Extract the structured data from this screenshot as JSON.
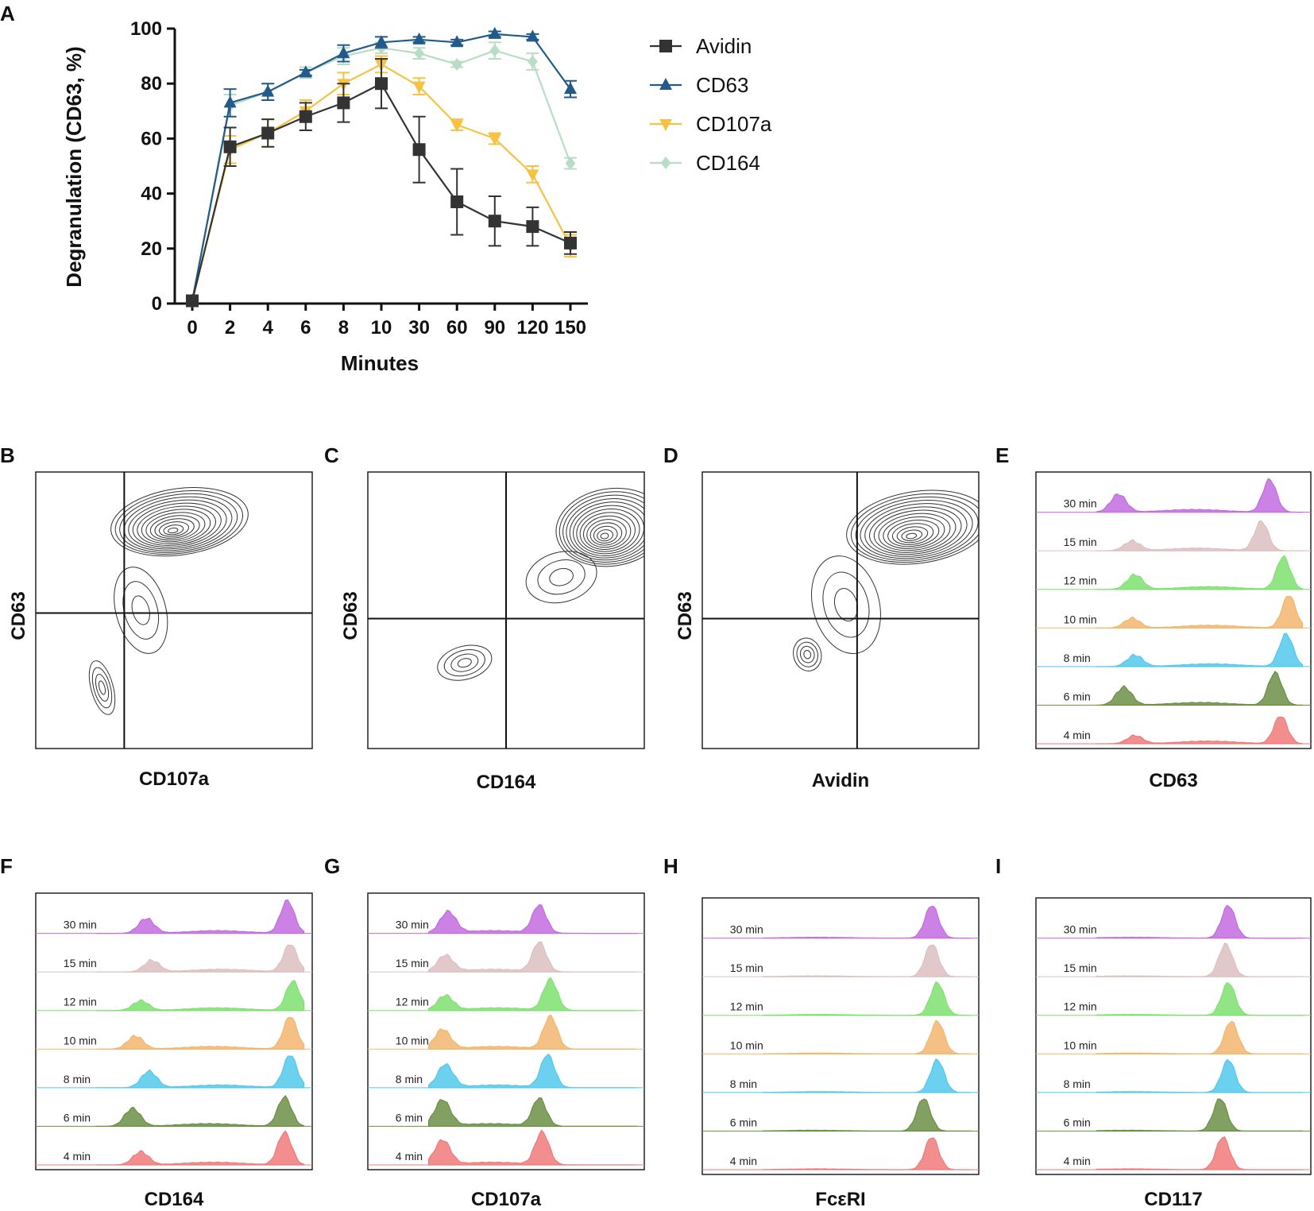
{
  "panel_labels": [
    "A",
    "B",
    "C",
    "D",
    "E",
    "F",
    "G",
    "H",
    "I"
  ],
  "chart_data": [
    {
      "id": "A",
      "type": "line",
      "title": "",
      "xlabel": "Minutes",
      "ylabel": "Degranulation (CD63, %)",
      "categories": [
        "0",
        "2",
        "4",
        "6",
        "8",
        "10",
        "30",
        "60",
        "90",
        "120",
        "150"
      ],
      "ylim": [
        0,
        100
      ],
      "yticks": [
        0,
        20,
        40,
        60,
        80,
        100
      ],
      "legend_position": "right",
      "series": [
        {
          "name": "Avidin",
          "color": "#333333",
          "marker": "square",
          "values": [
            1,
            57,
            62,
            68,
            73,
            80,
            56,
            37,
            30,
            28,
            22
          ],
          "errors": [
            0,
            7,
            5,
            5,
            7,
            9,
            12,
            12,
            9,
            7,
            4
          ]
        },
        {
          "name": "CD63",
          "color": "#235a8c",
          "marker": "triangle-up",
          "values": [
            1,
            73,
            77,
            84,
            91,
            95,
            96,
            95,
            98,
            97,
            78
          ],
          "errors": [
            0,
            5,
            3,
            1,
            3,
            2,
            1,
            1,
            1,
            1,
            3
          ]
        },
        {
          "name": "CD107a",
          "color": "#f5c242",
          "marker": "triangle-down",
          "values": [
            1,
            56,
            62,
            70,
            80,
            87,
            79,
            65,
            60,
            47,
            21
          ],
          "errors": [
            0,
            5,
            5,
            4,
            4,
            3,
            3,
            2,
            2,
            3,
            4
          ]
        },
        {
          "name": "CD164",
          "color": "#b8ddc4",
          "marker": "diamond",
          "values": [
            1,
            72,
            77,
            84,
            90,
            93,
            91,
            87,
            92,
            88,
            51
          ],
          "errors": [
            0,
            4,
            3,
            2,
            3,
            2,
            2,
            1,
            3,
            3,
            2
          ]
        }
      ]
    },
    {
      "id": "B",
      "type": "contour",
      "xlabel": "CD107a",
      "ylabel": "CD63",
      "populations": [
        {
          "x": 0.24,
          "y": 0.22,
          "sx": 0.04,
          "sy": 0.1,
          "levels": 4
        },
        {
          "x": 0.52,
          "y": 0.82,
          "sx": 0.25,
          "sy": 0.12,
          "levels": 14
        },
        {
          "x": 0.38,
          "y": 0.5,
          "sx": 0.09,
          "sy": 0.16,
          "levels": 3
        }
      ],
      "gate": {
        "x": 0.32,
        "y": 0.49
      }
    },
    {
      "id": "C",
      "type": "contour",
      "xlabel": "CD164",
      "ylabel": "CD63",
      "populations": [
        {
          "x": 0.35,
          "y": 0.31,
          "sx": 0.1,
          "sy": 0.06,
          "levels": 4
        },
        {
          "x": 0.88,
          "y": 0.8,
          "sx": 0.2,
          "sy": 0.14,
          "levels": 14
        },
        {
          "x": 0.7,
          "y": 0.62,
          "sx": 0.13,
          "sy": 0.09,
          "levels": 3
        }
      ],
      "gate": {
        "x": 0.5,
        "y": 0.47
      }
    },
    {
      "id": "D",
      "type": "contour",
      "xlabel": "Avidin",
      "ylabel": "CD63",
      "populations": [
        {
          "x": 0.38,
          "y": 0.34,
          "sx": 0.05,
          "sy": 0.06,
          "levels": 4
        },
        {
          "x": 0.78,
          "y": 0.8,
          "sx": 0.26,
          "sy": 0.13,
          "levels": 14
        },
        {
          "x": 0.52,
          "y": 0.52,
          "sx": 0.12,
          "sy": 0.18,
          "levels": 3
        }
      ],
      "gate": {
        "x": 0.56,
        "y": 0.47
      }
    },
    {
      "id": "E",
      "type": "histogram_overlay",
      "xlabel": "CD63",
      "rows": [
        "30 min",
        "15 min",
        "12 min",
        "10 min",
        "8 min",
        "6 min",
        "4 min"
      ],
      "colors": [
        "#c36be0",
        "#dcc0c0",
        "#7fe070",
        "#f3b56e",
        "#52c8ec",
        "#6b8f45",
        "#f07a7a"
      ],
      "peaks": [
        [
          0.3,
          0.55,
          0.85,
          1.0
        ],
        [
          0.35,
          0.3,
          0.82,
          0.9
        ],
        [
          0.36,
          0.45,
          0.9,
          1.0
        ],
        [
          0.35,
          0.3,
          0.92,
          1.0
        ],
        [
          0.36,
          0.35,
          0.91,
          1.0
        ],
        [
          0.32,
          0.55,
          0.87,
          1.0
        ],
        [
          0.36,
          0.25,
          0.89,
          0.85
        ]
      ]
    },
    {
      "id": "F",
      "type": "histogram_overlay",
      "xlabel": "CD164",
      "rows": [
        "30 min",
        "15 min",
        "12 min",
        "10 min",
        "8 min",
        "6 min",
        "4 min"
      ],
      "colors": [
        "#c36be0",
        "#dcc0c0",
        "#7fe070",
        "#f3b56e",
        "#52c8ec",
        "#6b8f45",
        "#f07a7a"
      ],
      "peaks": [
        [
          0.4,
          0.45,
          0.91,
          1.0
        ],
        [
          0.42,
          0.35,
          0.92,
          0.85
        ],
        [
          0.38,
          0.3,
          0.93,
          0.9
        ],
        [
          0.36,
          0.4,
          0.92,
          1.0
        ],
        [
          0.41,
          0.5,
          0.92,
          1.0
        ],
        [
          0.35,
          0.55,
          0.9,
          0.9
        ],
        [
          0.38,
          0.4,
          0.9,
          1.0
        ]
      ]
    },
    {
      "id": "G",
      "type": "histogram_overlay",
      "xlabel": "CD107a",
      "rows": [
        "30 min",
        "15 min",
        "12 min",
        "10 min",
        "8 min",
        "6 min",
        "4 min"
      ],
      "colors": [
        "#c36be0",
        "#dcc0c0",
        "#7fe070",
        "#f3b56e",
        "#52c8ec",
        "#6b8f45",
        "#f07a7a"
      ],
      "peaks": [
        [
          0.29,
          0.65,
          0.62,
          0.85
        ],
        [
          0.28,
          0.5,
          0.62,
          0.9
        ],
        [
          0.28,
          0.45,
          0.66,
          0.95
        ],
        [
          0.27,
          0.6,
          0.66,
          1.0
        ],
        [
          0.28,
          0.7,
          0.65,
          1.0
        ],
        [
          0.27,
          0.8,
          0.62,
          0.85
        ],
        [
          0.27,
          0.75,
          0.63,
          1.0
        ]
      ]
    },
    {
      "id": "H",
      "type": "histogram_overlay",
      "xlabel": "FcεRI",
      "rows": [
        "30 min",
        "15 min",
        "12 min",
        "10 min",
        "8 min",
        "6 min",
        "4 min"
      ],
      "colors": [
        "#c36be0",
        "#dcc0c0",
        "#7fe070",
        "#f3b56e",
        "#52c8ec",
        "#6b8f45",
        "#f07a7a"
      ],
      "peaks": [
        [
          0.0,
          0.0,
          0.83,
          1.0
        ],
        [
          0.0,
          0.0,
          0.83,
          1.0
        ],
        [
          0.0,
          0.0,
          0.85,
          1.0
        ],
        [
          0.0,
          0.0,
          0.85,
          1.0
        ],
        [
          0.0,
          0.0,
          0.85,
          1.0
        ],
        [
          0.0,
          0.0,
          0.8,
          1.0
        ],
        [
          0.0,
          0.0,
          0.83,
          1.0
        ]
      ]
    },
    {
      "id": "I",
      "type": "histogram_overlay",
      "xlabel": "CD117",
      "rows": [
        "30 min",
        "15 min",
        "12 min",
        "10 min",
        "8 min",
        "6 min",
        "4 min"
      ],
      "colors": [
        "#c36be0",
        "#dcc0c0",
        "#7fe070",
        "#f3b56e",
        "#52c8ec",
        "#6b8f45",
        "#f07a7a"
      ],
      "peaks": [
        [
          0.0,
          0.0,
          0.7,
          1.0
        ],
        [
          0.0,
          0.0,
          0.69,
          1.0
        ],
        [
          0.0,
          0.0,
          0.7,
          1.0
        ],
        [
          0.0,
          0.0,
          0.71,
          1.0
        ],
        [
          0.0,
          0.0,
          0.7,
          1.0
        ],
        [
          0.0,
          0.0,
          0.67,
          1.0
        ],
        [
          0.0,
          0.0,
          0.68,
          1.0
        ]
      ]
    }
  ]
}
